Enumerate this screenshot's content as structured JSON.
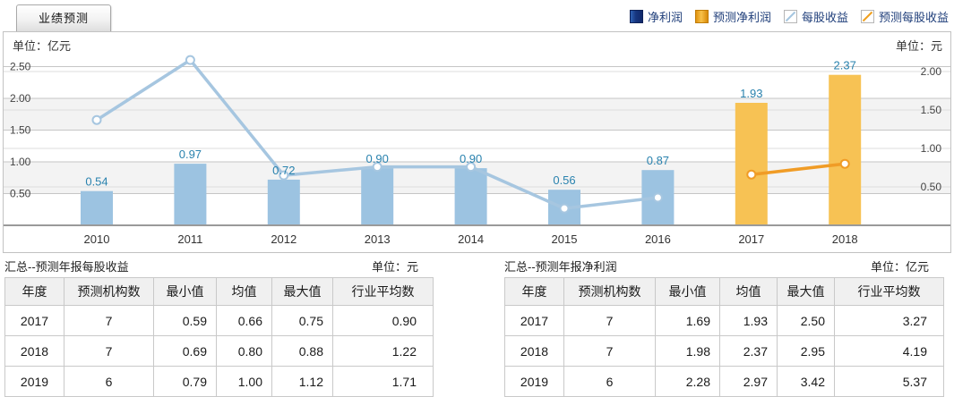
{
  "header": {
    "tab_label": "业绩预测"
  },
  "legend": {
    "items": [
      {
        "label": "净利润",
        "swatch": "bar-solid",
        "color": "#16357e"
      },
      {
        "label": "预测净利润",
        "swatch": "bar-solid",
        "color": "#f0a01e"
      },
      {
        "label": "每股收益",
        "swatch": "line",
        "color": "#a6c6e0"
      },
      {
        "label": "预测每股收益",
        "swatch": "line",
        "color": "#f09c26"
      }
    ]
  },
  "chart_data": {
    "type": "combo-bar-line",
    "categories": [
      "2010",
      "2011",
      "2012",
      "2013",
      "2014",
      "2015",
      "2016",
      "2017",
      "2018"
    ],
    "left_axis": {
      "label": "单位：亿元",
      "ticks": [
        "0.50",
        "1.00",
        "1.50",
        "2.00",
        "2.50"
      ],
      "range": [
        0,
        2.8
      ]
    },
    "right_axis": {
      "label": "单位：元",
      "ticks": [
        "0.50",
        "1.00",
        "1.50",
        "2.00"
      ],
      "range": [
        0,
        2.3
      ]
    },
    "grid": "horizontal",
    "legend_position": "top-right",
    "label_color": "#2982ae",
    "series": [
      {
        "name": "净利润",
        "type": "bar",
        "axis": "left",
        "color": "#9cc3e1",
        "values": [
          0.54,
          0.97,
          0.72,
          0.9,
          0.9,
          0.56,
          0.87,
          null,
          null
        ],
        "data_labels": [
          "0.54",
          "0.97",
          "0.72",
          "0.90",
          "0.90",
          "0.56",
          "0.87",
          null,
          null
        ]
      },
      {
        "name": "预测净利润",
        "type": "bar",
        "axis": "left",
        "color": "#f7c254",
        "values": [
          null,
          null,
          null,
          null,
          null,
          null,
          null,
          1.93,
          2.37
        ],
        "data_labels": [
          null,
          null,
          null,
          null,
          null,
          null,
          null,
          "1.93",
          "2.37"
        ]
      },
      {
        "name": "每股收益",
        "type": "line",
        "axis": "right",
        "color": "#a6c6e0",
        "values": [
          1.37,
          2.15,
          0.65,
          0.76,
          0.76,
          0.22,
          0.36,
          null,
          null
        ]
      },
      {
        "name": "预测每股收益",
        "type": "line",
        "axis": "right",
        "color": "#f09c26",
        "values": [
          null,
          null,
          null,
          null,
          null,
          null,
          null,
          0.66,
          0.8
        ]
      }
    ]
  },
  "tables": [
    {
      "title": "汇总--预测年报每股收益",
      "unit": "单位：元",
      "headers": [
        "年度",
        "预测机构数",
        "最小值",
        "均值",
        "最大值",
        "行业平均数"
      ],
      "rows": [
        [
          "2017",
          "7",
          "0.59",
          "0.66",
          "0.75",
          "0.90"
        ],
        [
          "2018",
          "7",
          "0.69",
          "0.80",
          "0.88",
          "1.22"
        ],
        [
          "2019",
          "6",
          "0.79",
          "1.00",
          "1.12",
          "1.71"
        ]
      ]
    },
    {
      "title": "汇总--预测年报净利润",
      "unit": "单位：亿元",
      "headers": [
        "年度",
        "预测机构数",
        "最小值",
        "均值",
        "最大值",
        "行业平均数"
      ],
      "rows": [
        [
          "2017",
          "7",
          "1.69",
          "1.93",
          "2.50",
          "3.27"
        ],
        [
          "2018",
          "7",
          "1.98",
          "2.37",
          "2.95",
          "4.19"
        ],
        [
          "2019",
          "6",
          "2.28",
          "2.97",
          "3.42",
          "5.37"
        ]
      ]
    }
  ]
}
